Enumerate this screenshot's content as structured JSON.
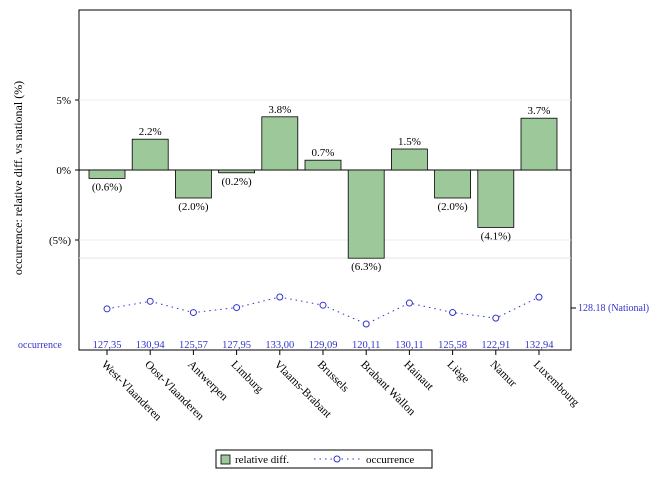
{
  "chart_data": {
    "type": "bar",
    "title": "",
    "xlabel": "",
    "ylabel": "occurrence: relative diff. vs national (%)",
    "categories": [
      "West-Vlaanderen",
      "Oost-Vlaanderen",
      "Antwerpen",
      "Limburg",
      "Vlaams-Brabant",
      "Brussels",
      "Brabant Wallon",
      "Hainaut",
      "Liège",
      "Namur",
      "Luxembourg"
    ],
    "series": [
      {
        "name": "relative diff.",
        "type": "bar",
        "color": "#9dc89a",
        "values": [
          -0.6,
          2.2,
          -2.0,
          -0.2,
          3.8,
          0.7,
          -6.3,
          1.5,
          -2.0,
          -4.1,
          3.7
        ],
        "labels": [
          "(0.6%)",
          "2.2%",
          "(2.0%)",
          "(0.2%)",
          "3.8%",
          "0.7%",
          "(6.3%)",
          "1.5%",
          "(2.0%)",
          "(4.1%)",
          "3.7%"
        ]
      },
      {
        "name": "occurrence",
        "type": "line",
        "line_style": "dotted",
        "marker": "open-circle",
        "color": "#3333cc",
        "values": [
          127.35,
          130.94,
          125.57,
          127.95,
          133.0,
          129.09,
          120.11,
          130.11,
          125.58,
          122.91,
          132.94
        ],
        "labels": [
          "127,35",
          "130,94",
          "125,57",
          "127,95",
          "133,00",
          "129,09",
          "120,11",
          "130,11",
          "125,58",
          "122,91",
          "132,94"
        ]
      }
    ],
    "y_ticks": [
      {
        "value": 5,
        "label": "5%"
      },
      {
        "value": 0,
        "label": "0%"
      },
      {
        "value": -5,
        "label": "(5%)"
      }
    ],
    "ylim": [
      -11,
      11.5
    ],
    "occurrence_axis": {
      "row_label": "occurrence",
      "national_value": 128.18,
      "national_label": "128.18 (National)",
      "range": [
        120.11,
        133.0
      ]
    },
    "grid": true,
    "legend_position": "bottom",
    "legend": [
      "relative diff.",
      "occurrence"
    ]
  }
}
